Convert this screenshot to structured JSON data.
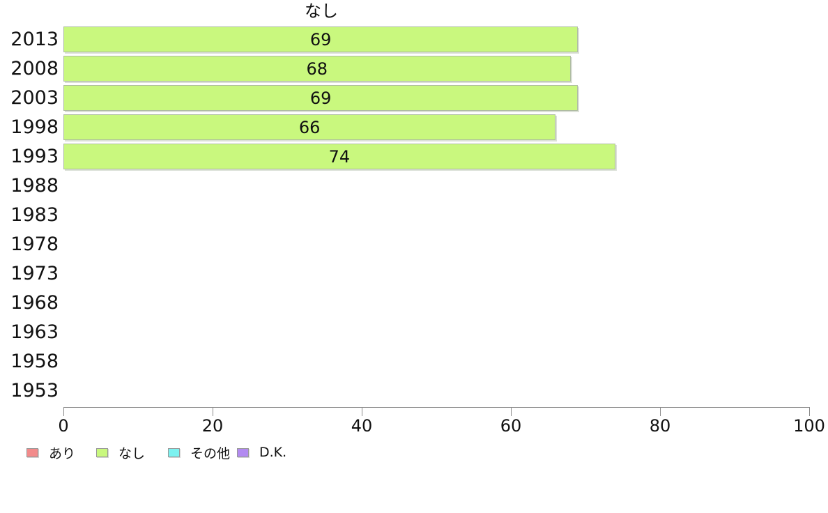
{
  "chart_data": {
    "type": "bar",
    "orientation": "horizontal",
    "title": "なし",
    "categories": [
      "2013",
      "2008",
      "2003",
      "1998",
      "1993",
      "1988",
      "1983",
      "1978",
      "1973",
      "1968",
      "1963",
      "1958",
      "1953"
    ],
    "series": [
      {
        "name": "なし",
        "color": "#c9f87e",
        "values": [
          69,
          68,
          69,
          66,
          74,
          null,
          null,
          null,
          null,
          null,
          null,
          null,
          null
        ]
      }
    ],
    "value_labels": true,
    "xlim": [
      0,
      100
    ],
    "xticks": [
      0,
      20,
      40,
      60,
      80,
      100
    ],
    "grid": false,
    "legend_position": "bottom",
    "legend": [
      {
        "label": "あり",
        "color": "#f28b8b"
      },
      {
        "label": "なし",
        "color": "#c9f87e"
      },
      {
        "label": "その他",
        "color": "#7cf2f0"
      },
      {
        "label": "D.K.",
        "color": "#b28af0"
      }
    ]
  },
  "colors": {
    "background": "#ffffff",
    "text": "#111111",
    "axis": "#8a8a8a",
    "bar_border": "#adbba0"
  }
}
